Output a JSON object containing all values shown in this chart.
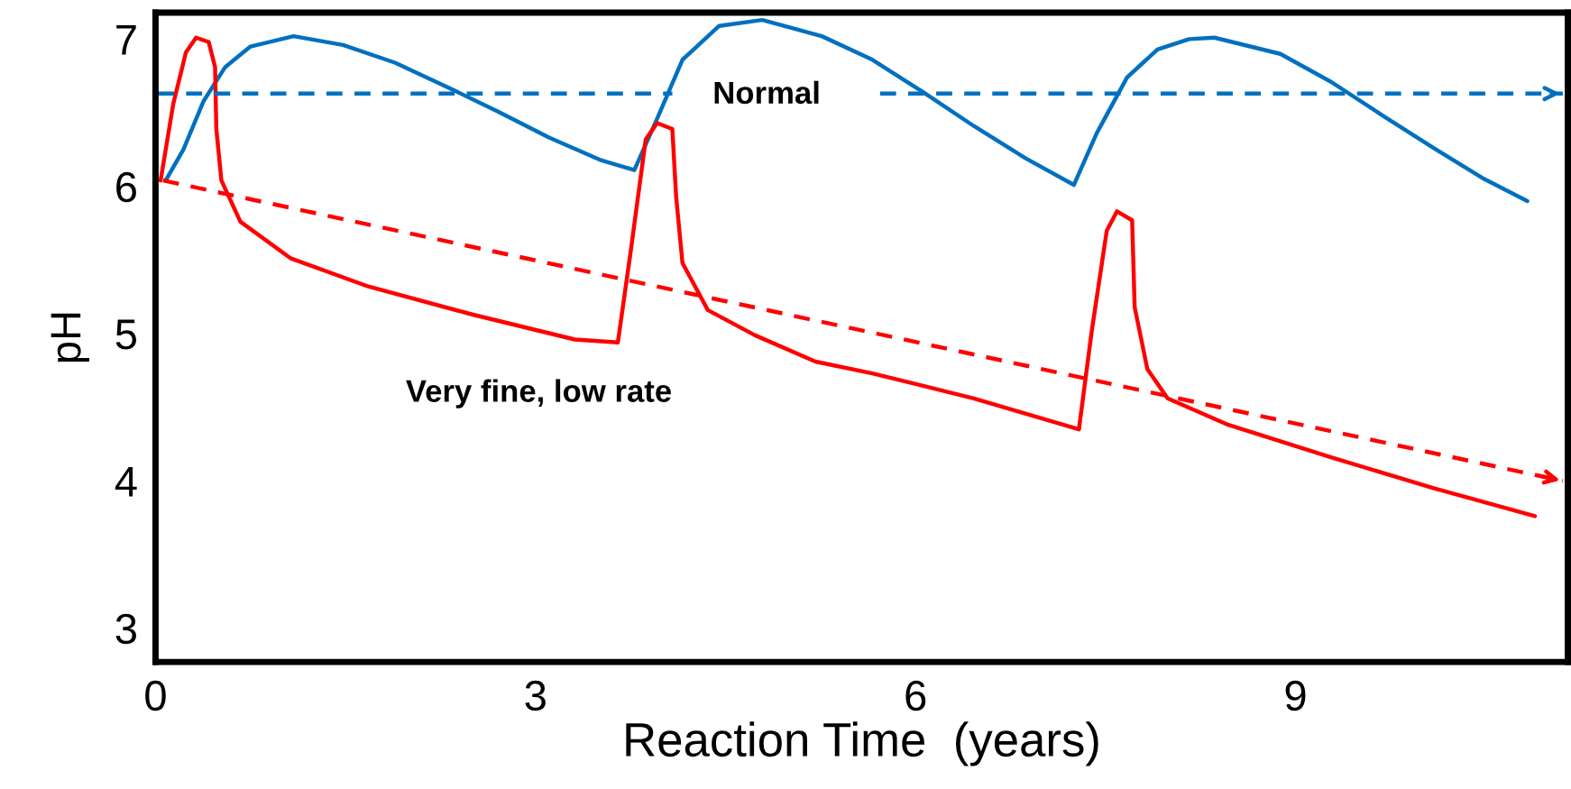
{
  "chart_data": {
    "type": "line",
    "xlabel": "Reaction Time  (years)",
    "ylabel": "pH",
    "xlim": [
      0,
      11.15
    ],
    "ylim": [
      2.77,
      7.18
    ],
    "xticks": [
      0,
      3,
      6,
      9
    ],
    "yticks": [
      3,
      4,
      5,
      6,
      7
    ],
    "grid": false,
    "legend": false,
    "marker": "none",
    "series": [
      {
        "color": "#0070c0",
        "line_style": "solid",
        "x": [
          0.08,
          0.22,
          0.38,
          0.55,
          0.75,
          1.09,
          1.48,
          1.89,
          2.29,
          2.7,
          3.11,
          3.51,
          3.78,
          3.96,
          4.16,
          4.45,
          4.79,
          5.26,
          5.66,
          6.06,
          6.46,
          6.87,
          7.25,
          7.43,
          7.67,
          7.91,
          8.16,
          8.36,
          8.88,
          9.28,
          9.69,
          10.09,
          10.49,
          10.83
        ],
        "values": [
          6.04,
          6.25,
          6.58,
          6.81,
          6.95,
          7.02,
          6.96,
          6.84,
          6.68,
          6.51,
          6.33,
          6.18,
          6.11,
          6.46,
          6.86,
          7.09,
          7.13,
          7.02,
          6.86,
          6.64,
          6.41,
          6.19,
          6.01,
          6.36,
          6.74,
          6.93,
          7.0,
          7.01,
          6.9,
          6.71,
          6.48,
          6.26,
          6.05,
          5.9
        ]
      },
      {
        "color": "#ff0000",
        "line_style": "solid",
        "x": [
          0.04,
          0.14,
          0.24,
          0.32,
          0.42,
          0.47,
          0.48,
          0.52,
          0.67,
          1.07,
          1.68,
          2.5,
          3.31,
          3.65,
          3.75,
          3.87,
          3.96,
          4.08,
          4.11,
          4.16,
          4.36,
          4.73,
          5.21,
          5.66,
          6.46,
          7.29,
          7.39,
          7.51,
          7.59,
          7.71,
          7.73,
          7.83,
          7.99,
          8.47,
          9.28,
          10.09,
          10.89
        ],
        "values": [
          6.04,
          6.56,
          6.91,
          7.01,
          6.98,
          6.81,
          6.39,
          6.04,
          5.76,
          5.51,
          5.32,
          5.13,
          4.96,
          4.94,
          5.55,
          6.32,
          6.43,
          6.39,
          5.93,
          5.48,
          5.16,
          4.99,
          4.81,
          4.73,
          4.56,
          4.35,
          5.01,
          5.7,
          5.83,
          5.77,
          5.18,
          4.76,
          4.56,
          4.38,
          4.16,
          3.95,
          3.76
        ]
      },
      {
        "color": "#0070c0",
        "line_style": "dashed",
        "x": [
          0.02,
          4.08,
          4.9,
          5.72,
          11.11
        ],
        "values": [
          6.63,
          6.63,
          null,
          6.63,
          6.63
        ]
      },
      {
        "color": "#ff0000",
        "line_style": "dashed",
        "x": [
          0.06,
          11.11
        ],
        "values": [
          6.04,
          4.0
        ]
      }
    ],
    "annotations": [
      "Normal",
      "Very fine, low rate"
    ]
  }
}
